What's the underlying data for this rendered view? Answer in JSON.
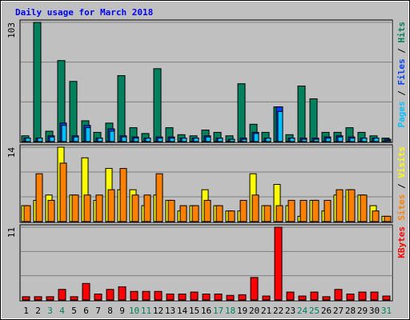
{
  "title": "Daily usage for March 2018",
  "legend_separator": " / ",
  "chart_data": [
    {
      "type": "bar",
      "ylim": [
        0,
        103
      ],
      "yticks": [
        103
      ],
      "series": [
        {
          "name": "Hits",
          "color": "#00805c",
          "values": [
            5,
            103,
            9,
            70,
            52,
            18,
            8,
            16,
            57,
            12,
            7,
            63,
            12,
            6,
            5,
            10,
            8,
            5,
            50,
            15,
            8,
            30,
            6,
            48,
            37,
            8,
            8,
            12,
            8,
            5,
            3
          ]
        },
        {
          "name": "Files",
          "color": "#0040ff",
          "values": [
            3,
            3,
            5,
            16,
            5,
            14,
            3,
            11,
            5,
            4,
            3,
            4,
            4,
            3,
            3,
            5,
            3,
            2,
            3,
            8,
            3,
            30,
            3,
            3,
            3,
            4,
            5,
            4,
            3,
            3,
            2
          ]
        },
        {
          "name": "Pages",
          "color": "#00c0ff",
          "values": [
            3,
            3,
            4,
            14,
            4,
            12,
            3,
            9,
            4,
            3,
            3,
            3,
            3,
            3,
            3,
            4,
            3,
            2,
            2,
            7,
            3,
            26,
            3,
            2,
            2,
            3,
            4,
            3,
            3,
            3,
            1
          ]
        }
      ]
    },
    {
      "type": "bar",
      "ylim": [
        0,
        14
      ],
      "yticks": [
        14
      ],
      "series": [
        {
          "name": "Visits",
          "color": "#ffff00",
          "values": [
            3,
            4,
            5,
            14,
            5,
            12,
            4,
            10,
            6,
            6,
            3,
            5,
            4,
            2,
            3,
            6,
            3,
            2,
            2,
            9,
            3,
            7,
            3,
            1,
            4,
            2,
            5,
            6,
            5,
            3,
            1
          ]
        },
        {
          "name": "Sites",
          "color": "#ff8000",
          "values": [
            3,
            9,
            4,
            11,
            5,
            5,
            5,
            6,
            10,
            5,
            5,
            9,
            4,
            3,
            3,
            4,
            3,
            2,
            4,
            5,
            3,
            3,
            4,
            4,
            4,
            4,
            6,
            6,
            5,
            2,
            1
          ]
        }
      ]
    },
    {
      "type": "bar",
      "ylim": [
        0,
        11
      ],
      "yticks": [
        11
      ],
      "categories": [
        "1",
        "2",
        "3",
        "4",
        "5",
        "6",
        "7",
        "8",
        "9",
        "10",
        "11",
        "12",
        "13",
        "14",
        "15",
        "16",
        "17",
        "18",
        "19",
        "20",
        "21",
        "22",
        "23",
        "24",
        "25",
        "26",
        "27",
        "28",
        "29",
        "30",
        "31"
      ],
      "category_colors": [
        "#000000",
        "#000000",
        "#00805c",
        "#00805c",
        "#000000",
        "#000000",
        "#000000",
        "#000000",
        "#000000",
        "#00805c",
        "#00805c",
        "#000000",
        "#000000",
        "#000000",
        "#000000",
        "#000000",
        "#00805c",
        "#00805c",
        "#000000",
        "#000000",
        "#000000",
        "#000000",
        "#000000",
        "#00805c",
        "#00805c",
        "#000000",
        "#000000",
        "#000000",
        "#000000",
        "#000000",
        "#00805c"
      ],
      "series": [
        {
          "name": "KBytes",
          "color": "#ff0000",
          "values": [
            0.5,
            0.5,
            0.5,
            1.6,
            0.5,
            2.5,
            0.9,
            1.6,
            2.0,
            1.3,
            1.3,
            1.3,
            0.9,
            0.9,
            1.2,
            0.9,
            0.9,
            0.7,
            0.8,
            3.4,
            0.6,
            11,
            1.2,
            0.6,
            1.2,
            0.5,
            1.6,
            0.9,
            1.2,
            1.2,
            0.6
          ]
        }
      ]
    }
  ]
}
